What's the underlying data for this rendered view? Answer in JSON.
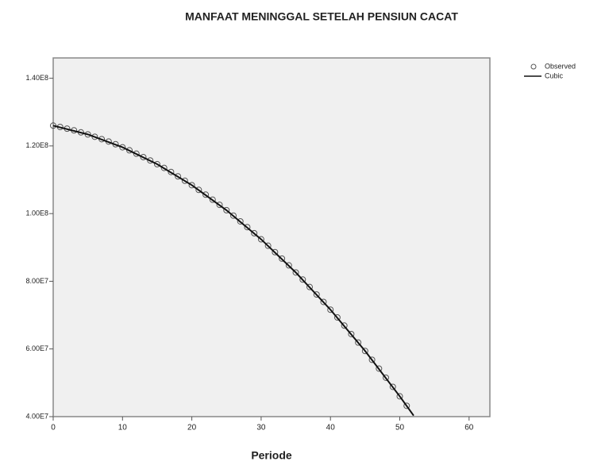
{
  "chart_data": {
    "type": "scatter",
    "title": "MANFAAT MENINGGAL SETELAH PENSIUN CACAT",
    "x_label": "Periode",
    "xlim": [
      0,
      63
    ],
    "xticks": [
      0,
      10,
      20,
      30,
      40,
      50,
      60
    ],
    "ylim": [
      40000000,
      146000000
    ],
    "yticks": [
      {
        "value": 40000000,
        "label": "4.00E7"
      },
      {
        "value": 60000000,
        "label": "6.00E7"
      },
      {
        "value": 80000000,
        "label": "8.00E7"
      },
      {
        "value": 100000000,
        "label": "1.00E8"
      },
      {
        "value": 120000000,
        "label": "1.20E8"
      },
      {
        "value": 140000000,
        "label": "1.40E8"
      }
    ],
    "grid": false,
    "legend": "right",
    "series": [
      {
        "name": "Observed",
        "type": "scatter",
        "color": "#555555",
        "x": [
          0,
          1,
          2,
          3,
          4,
          5,
          6,
          7,
          8,
          9,
          10,
          11,
          12,
          13,
          14,
          15,
          16,
          17,
          18,
          19,
          20,
          21,
          22,
          23,
          24,
          25,
          26,
          27,
          28,
          29,
          30,
          31,
          32,
          33,
          34,
          35,
          36,
          37,
          38,
          39,
          40,
          41,
          42,
          43,
          44,
          45,
          46,
          47,
          48,
          49,
          50,
          51
        ],
        "values": [
          126000000,
          125600000,
          125100000,
          124600000,
          124000000,
          123400000,
          122700000,
          122000000,
          121300000,
          120500000,
          119600000,
          118700000,
          117700000,
          116700000,
          115700000,
          114600000,
          113500000,
          112300000,
          111000000,
          109700000,
          108400000,
          107000000,
          105600000,
          104100000,
          102600000,
          101000000,
          99400000,
          97700000,
          96000000,
          94200000,
          92400000,
          90500000,
          88600000,
          86700000,
          84700000,
          82600000,
          80500000,
          78300000,
          76100000,
          73900000,
          71600000,
          69300000,
          66900000,
          64400000,
          61900000,
          59400000,
          56800000,
          54200000,
          51500000,
          48800000,
          46000000,
          43200000
        ]
      },
      {
        "name": "Cubic",
        "type": "line",
        "color": "#111111",
        "x": [
          0,
          5,
          10,
          15,
          20,
          25,
          30,
          35,
          40,
          45,
          50,
          52
        ],
        "values": [
          126000000,
          123400000,
          119600000,
          114600000,
          108400000,
          101000000,
          92400000,
          82600000,
          71600000,
          59400000,
          46000000,
          40300000
        ]
      }
    ]
  }
}
